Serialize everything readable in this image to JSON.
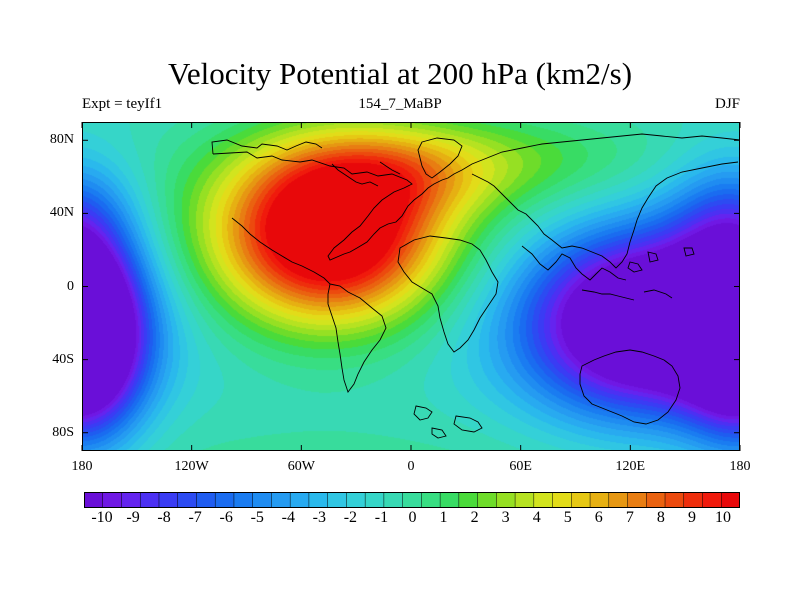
{
  "title": "Velocity Potential at 200 hPa (km2/s)",
  "subtitle_left": "Expt = teyIf1",
  "subtitle_center": "154_7_MaBP",
  "subtitle_right": "DJF",
  "chart_data": {
    "type": "heatmap",
    "title": "Velocity Potential at 200 hPa (km2/s)",
    "units": "km2/s",
    "variable": "Velocity Potential",
    "level_hPa": 200,
    "experiment": "teyIf1",
    "season": "DJF",
    "x_range": [
      -180,
      180
    ],
    "y_range": [
      -90,
      90
    ],
    "x_ticks": [
      {
        "value": -180,
        "label": "180"
      },
      {
        "value": -120,
        "label": "120W"
      },
      {
        "value": -60,
        "label": "60W"
      },
      {
        "value": 0,
        "label": "0"
      },
      {
        "value": 60,
        "label": "60E"
      },
      {
        "value": 120,
        "label": "120E"
      },
      {
        "value": 180,
        "label": "180"
      }
    ],
    "y_ticks": [
      {
        "value": 80,
        "label": "80N"
      },
      {
        "value": 40,
        "label": "40N"
      },
      {
        "value": 0,
        "label": "0"
      },
      {
        "value": -40,
        "label": "40S"
      },
      {
        "value": -80,
        "label": "80S"
      }
    ],
    "value_range": [
      -10.5,
      10.5
    ],
    "contour_interval": 0.5,
    "field_features": [
      {
        "kind": "maximum",
        "lon": -45,
        "lat": 30,
        "value": 10
      },
      {
        "kind": "minimum",
        "lon": 130,
        "lat": -15,
        "value": -10
      },
      {
        "kind": "minimum",
        "lon": -175,
        "lat": -25,
        "value": -10
      }
    ],
    "colorbar_labels": [
      "-10",
      "-9",
      "-8",
      "-7",
      "-6",
      "-5",
      "-4",
      "-3",
      "-2",
      "-1",
      "0",
      "1",
      "2",
      "3",
      "4",
      "5",
      "6",
      "7",
      "8",
      "9",
      "10"
    ],
    "colorbar_colors": [
      "#6a0fd8",
      "#6f18e4",
      "#6424ef",
      "#4c30f3",
      "#3a3cf4",
      "#2c4bf2",
      "#1f5cf0",
      "#1a6cf0",
      "#1a7cf1",
      "#1f8cf1",
      "#259bf1",
      "#28aaf0",
      "#2ab9ec",
      "#30c6e3",
      "#34d0d8",
      "#36d6c8",
      "#38d9b4",
      "#38dc9c",
      "#38de82",
      "#38dc64",
      "#4adb3a",
      "#6edc2a",
      "#96e023",
      "#b6e221",
      "#d2e41e",
      "#e2dc19",
      "#e6c814",
      "#e6b012",
      "#e69712",
      "#e87d12",
      "#ea6210",
      "#ec4a0e",
      "#ee2e0c",
      "#f01a0c",
      "#e8080a"
    ]
  }
}
